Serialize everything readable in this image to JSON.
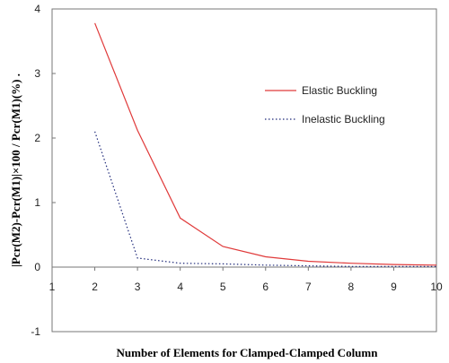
{
  "chart_data": {
    "type": "line",
    "xlabel": "Number of Elements for Clamped-Clamped Column",
    "ylabel": "|Pcr(M2)-Pcr(M1)|×100 / Pcr(M1)(%)  .",
    "xlim": [
      1,
      10
    ],
    "ylim": [
      -1,
      4
    ],
    "x_ticks": [
      "1",
      "2",
      "3",
      "4",
      "5",
      "6",
      "7",
      "8",
      "9",
      "10"
    ],
    "y_ticks": [
      "-1",
      "0",
      "1",
      "2",
      "3",
      "4"
    ],
    "grid": false,
    "legend_position": "right",
    "series": [
      {
        "name": "Elastic Buckling",
        "style": "solid",
        "color": "#e03a3a",
        "x": [
          2,
          3,
          4,
          5,
          6,
          7,
          8,
          9,
          10
        ],
        "y": [
          3.78,
          2.12,
          0.76,
          0.32,
          0.16,
          0.09,
          0.06,
          0.04,
          0.03
        ]
      },
      {
        "name": "Inelastic Buckling",
        "style": "dotted",
        "color": "#1f2a7a",
        "x": [
          2,
          3,
          4,
          5,
          6,
          7,
          8,
          9,
          10
        ],
        "y": [
          2.1,
          0.14,
          0.06,
          0.05,
          0.03,
          0.02,
          0.01,
          0.01,
          0.01
        ]
      }
    ]
  }
}
